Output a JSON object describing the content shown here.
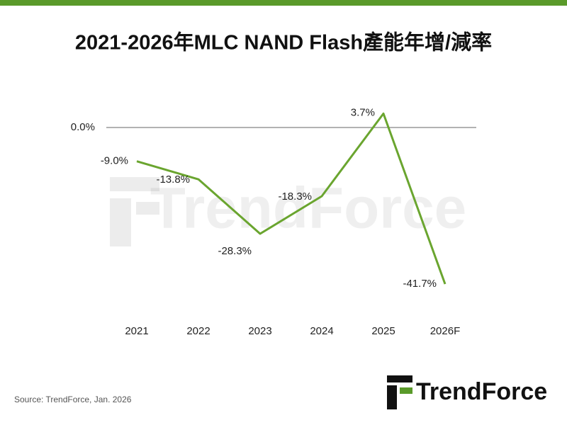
{
  "chart_data": {
    "type": "line",
    "title": "2021-2026年MLC NAND Flash產能年增/減率",
    "categories": [
      "2021",
      "2022",
      "2023",
      "2024",
      "2025",
      "2026F"
    ],
    "series": [
      {
        "name": "MLC NAND Flash",
        "color": "#6aa52f",
        "values": [
          -9.0,
          -13.8,
          -28.3,
          -18.3,
          3.7,
          -41.7
        ],
        "value_labels": [
          "-9.0%",
          "-13.8%",
          "-28.3%",
          "-18.3%",
          "3.7%",
          "-41.7%"
        ]
      }
    ],
    "ylim": [
      -45,
      5
    ],
    "yticks": [
      {
        "value": 0,
        "label": "0.0%"
      }
    ],
    "watermark": "TrendForce",
    "source": "Source: TrendForce, Jan. 2026",
    "brand": "TrendForce"
  }
}
